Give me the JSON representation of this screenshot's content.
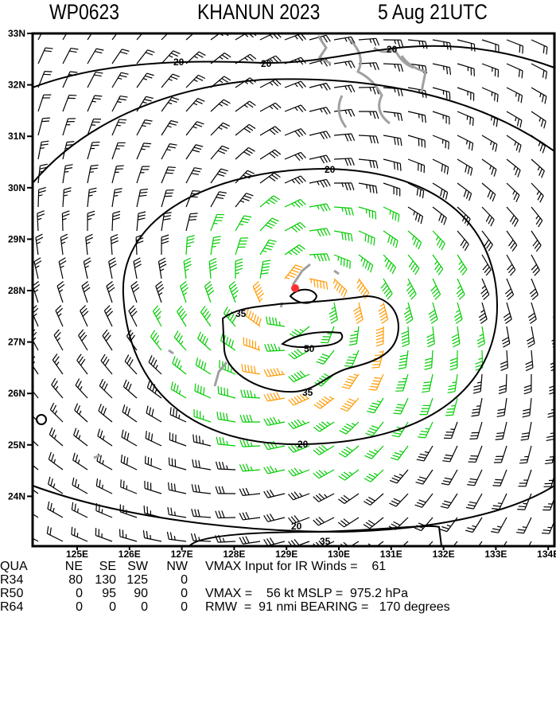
{
  "header": {
    "storm_id": "WP0623",
    "title": "KHANUN 2023",
    "datetime": "5 Aug 21UTC"
  },
  "map": {
    "lon_ticks": [
      "125E",
      "126E",
      "127E",
      "128E",
      "129E",
      "130E",
      "131E",
      "132E",
      "133E",
      "134E"
    ],
    "lat_ticks": [
      "33N",
      "32N",
      "31N",
      "30N",
      "29N",
      "28N",
      "27N",
      "26N",
      "25N",
      "24N"
    ],
    "contour_labels": {
      "c20a": "20",
      "c20b": "20",
      "c20c": "20",
      "c20d": "20",
      "c20e": "20",
      "c20f": "20",
      "c35a": "35",
      "c35b": "35",
      "c35c": "35",
      "c50": "50"
    },
    "colors": {
      "below_34kt": "#000000",
      "34_to_49kt": "#00cc00",
      "50_plus_kt": "#ff9900",
      "coastline": "#a0a0a0",
      "center": "#ff3030"
    }
  },
  "table": {
    "headers": [
      "QUA",
      "NE",
      "SE",
      "SW",
      "NW"
    ],
    "rows": [
      {
        "label": "R34",
        "values": [
          "80",
          "130",
          "125",
          "0"
        ]
      },
      {
        "label": "R50",
        "values": [
          "0",
          "95",
          "90",
          "0"
        ]
      },
      {
        "label": "R64",
        "values": [
          "0",
          "0",
          "0",
          "0"
        ]
      }
    ],
    "vmax_ir": "VMAX Input for IR Winds =    61",
    "vmax_mslp": "VMAX =    56 kt MSLP =  975.2 hPa",
    "rmw_bearing": "RMW  =  91 nmi BEARING =   170 degrees"
  }
}
